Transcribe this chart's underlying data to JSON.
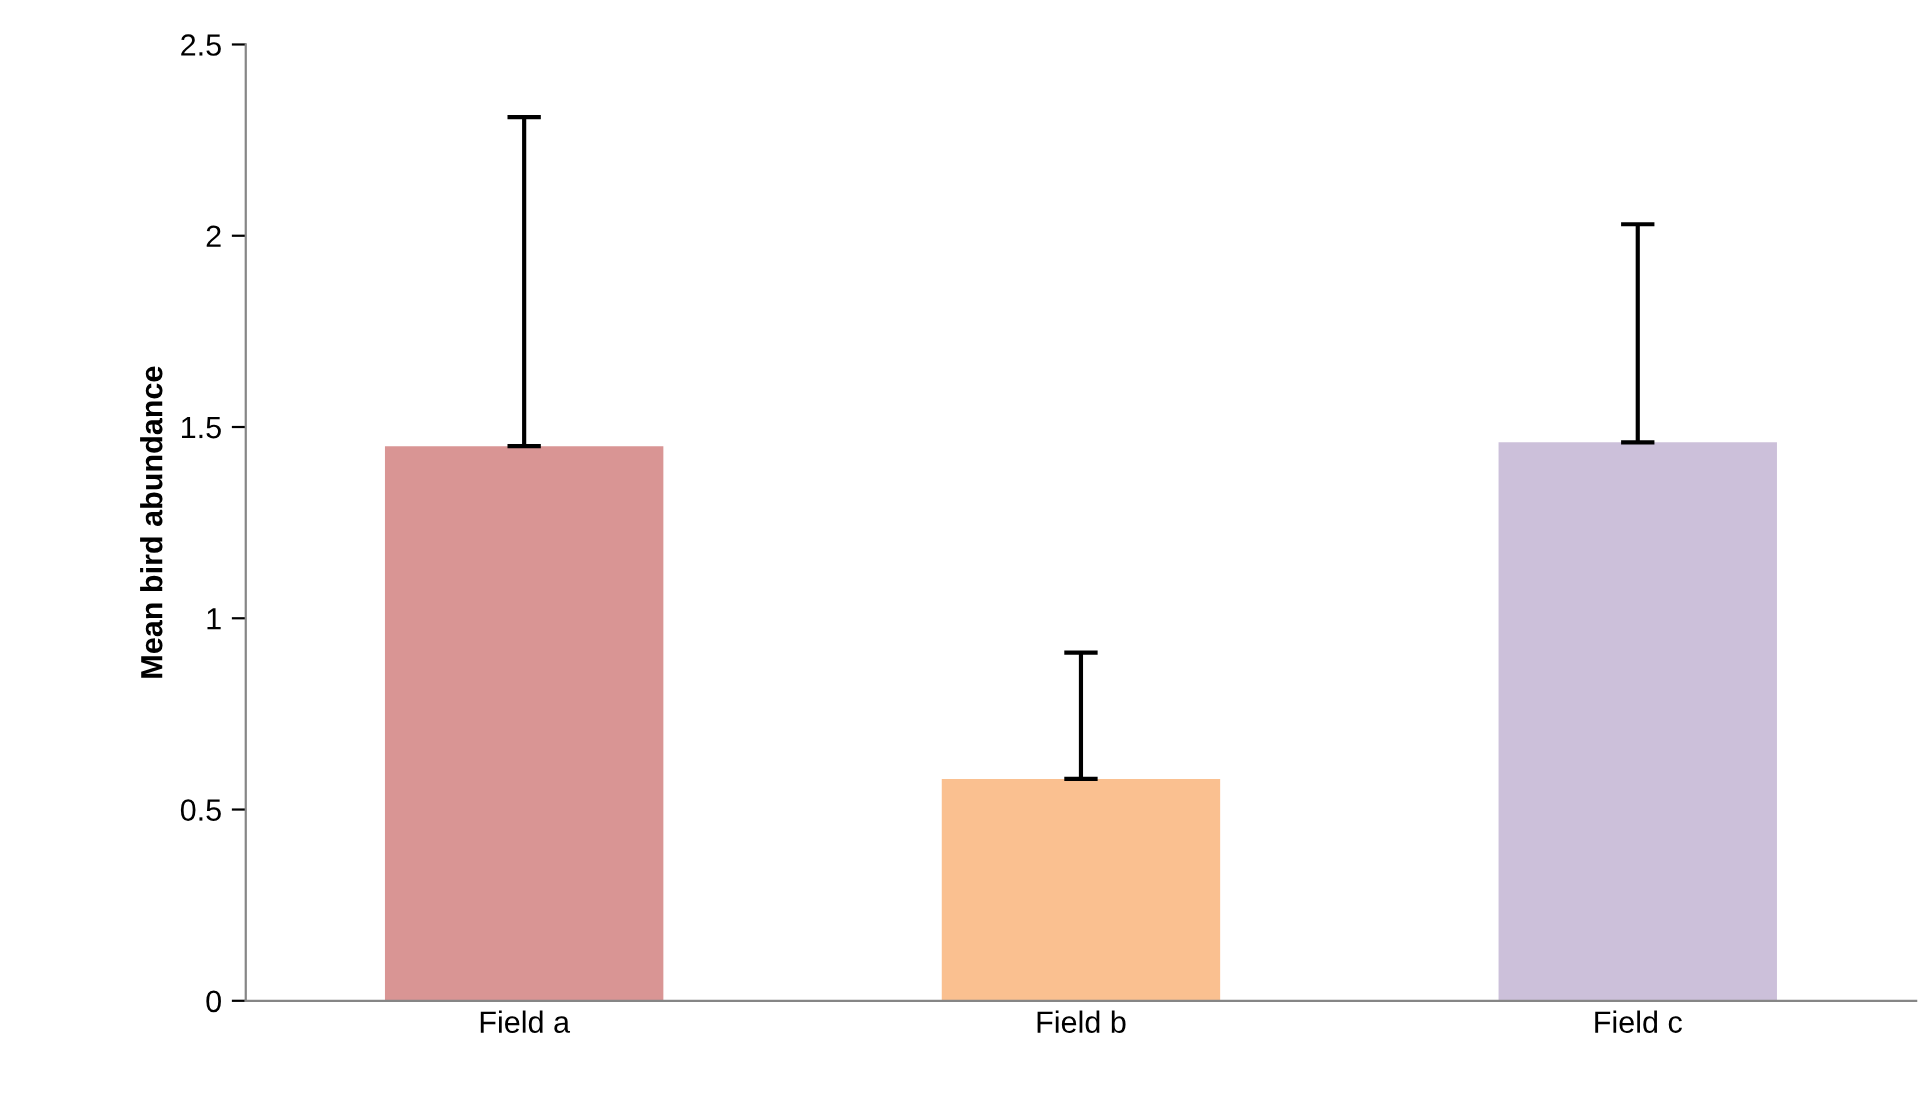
{
  "chart_data": {
    "type": "bar",
    "ylabel": "Mean bird abundance",
    "categories": [
      "Field a",
      "Field b",
      "Field c"
    ],
    "values": [
      1.45,
      0.58,
      1.46
    ],
    "colors": [
      "#d99594",
      "#fac090",
      "#ccc0da"
    ],
    "errors": [
      [
        1.45,
        2.31
      ],
      [
        0.58,
        0.91
      ],
      [
        1.46,
        2.03
      ]
    ],
    "ylim": [
      0,
      2.5
    ],
    "yticks": [
      0,
      {
        "value": 0.5,
        "label": "0.5"
      },
      1,
      {
        "value": 1.5,
        "label": "1.5"
      },
      2,
      {
        "value": 2.5,
        "label": "2.5"
      }
    ],
    "grid": false,
    "legend": false
  }
}
